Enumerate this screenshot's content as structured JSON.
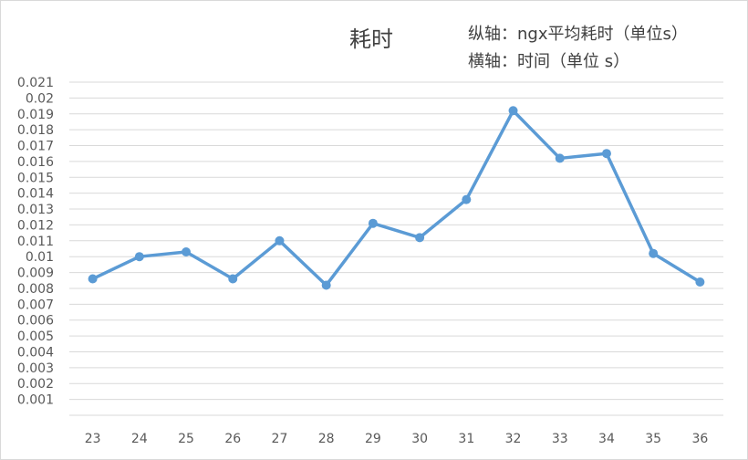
{
  "chart_data": {
    "type": "line",
    "title": "耗时",
    "annotations": [
      "纵轴：ngx平均耗时（单位s）",
      "横轴：时间（单位 s）"
    ],
    "x": [
      23,
      24,
      25,
      26,
      27,
      28,
      29,
      30,
      31,
      32,
      33,
      34,
      35,
      36
    ],
    "series": [
      {
        "values": [
          0.0086,
          0.01,
          0.0103,
          0.0086,
          0.011,
          0.0082,
          0.0121,
          0.0112,
          0.0136,
          0.0192,
          0.0162,
          0.0165,
          0.0102,
          0.0084
        ]
      }
    ],
    "ylim": [
      0,
      0.021
    ],
    "yticks": [
      "0.001",
      "0.002",
      "0.003",
      "0.004",
      "0.005",
      "0.006",
      "0.007",
      "0.008",
      "0.009",
      "0.01",
      "0.011",
      "0.012",
      "0.013",
      "0.014",
      "0.015",
      "0.016",
      "0.017",
      "0.018",
      "0.019",
      "0.02",
      "0.021"
    ],
    "grid": true,
    "legend": "none",
    "line_color": "#5b9bd5",
    "grid_color": "#d9d9d9"
  }
}
